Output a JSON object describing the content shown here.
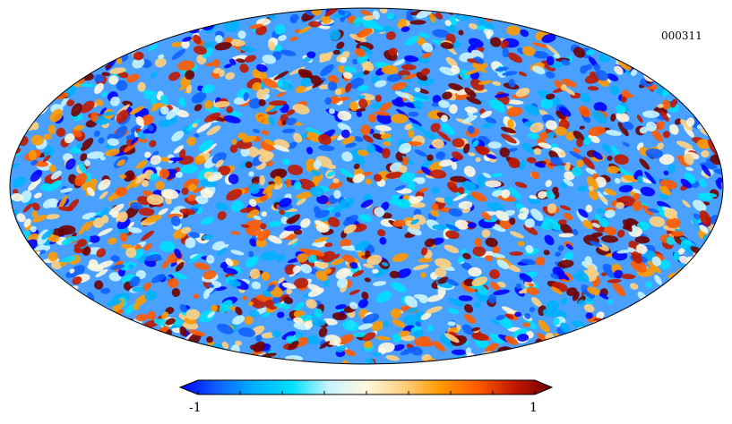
{
  "map": {
    "label": "000311",
    "projection": "mollweide",
    "colormap": [
      "#0000ff",
      "#1060ff",
      "#00b0ff",
      "#00e0ff",
      "#c8f4ff",
      "#fff8e0",
      "#ffd080",
      "#ff9a00",
      "#ff5a00",
      "#c01800",
      "#700000"
    ],
    "outline_color": "#000000"
  },
  "colorbar": {
    "min_label": "-1",
    "max_label": "1",
    "tick_count": 9
  }
}
